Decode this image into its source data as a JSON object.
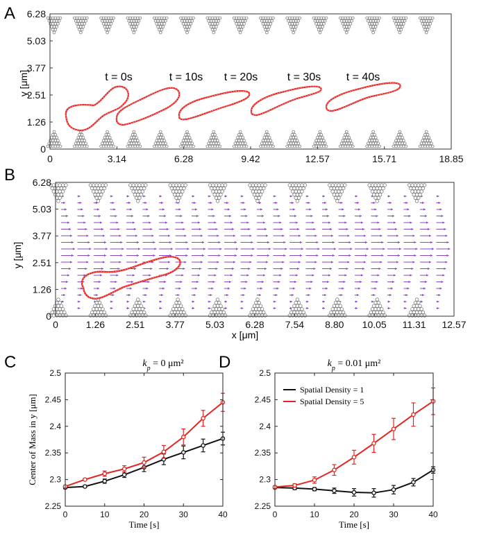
{
  "panels": {
    "A": {
      "label": "A",
      "ylabel": "y [μm]",
      "xticks": [
        "0",
        "3.14",
        "6.28",
        "9.42",
        "12.57",
        "15.71",
        "18.85"
      ],
      "yticks": [
        "0",
        "1.26",
        "2.51",
        "3.77",
        "5.03",
        "6.28"
      ],
      "time_labels": [
        "t = 0s",
        "t = 10s",
        "t = 20s",
        "t = 30s",
        "t = 40s"
      ],
      "cell_color": "#e52420",
      "post_color": "#888888"
    },
    "B": {
      "label": "B",
      "xlabel": "x [μm]",
      "ylabel": "y [μm]",
      "xticks": [
        "0",
        "1.26",
        "2.51",
        "3.77",
        "5.03",
        "6.28",
        "7.54",
        "8.80",
        "10.05",
        "11.31",
        "12.57"
      ],
      "yticks": [
        "0",
        "1.26",
        "2.51",
        "3.77",
        "5.03",
        "6.28"
      ],
      "arrow_color": "#8a44c4",
      "cell_color": "#e52420"
    },
    "C": {
      "label": "C",
      "title_prefix": "k",
      "title_sub": "p",
      "title_rest": " = 0 μm²"
    },
    "D": {
      "label": "D",
      "title_prefix": "k",
      "title_sub": "p",
      "title_rest": " = 0.01 μm²"
    }
  },
  "chart_data": [
    {
      "panel": "C",
      "type": "line",
      "title": "k_p = 0 μm²",
      "xlabel": "Time [s]",
      "ylabel": "Center of Mass in y [μm]",
      "xlim": [
        0,
        40
      ],
      "ylim": [
        2.25,
        2.5
      ],
      "xticks": [
        0,
        10,
        20,
        30,
        40
      ],
      "yticks": [
        2.25,
        2.3,
        2.35,
        2.4,
        2.45,
        2.5
      ],
      "x": [
        0,
        5,
        10,
        15,
        20,
        25,
        30,
        35,
        40
      ],
      "series": [
        {
          "name": "Spatial Density = 1",
          "color": "#111111",
          "values": [
            2.285,
            2.287,
            2.297,
            2.309,
            2.323,
            2.338,
            2.351,
            2.364,
            2.377
          ],
          "errors": [
            0.002,
            0.002,
            0.004,
            0.005,
            0.008,
            0.01,
            0.012,
            0.012,
            0.012
          ]
        },
        {
          "name": "Spatial Density = 5",
          "color": "#e52420",
          "values": [
            2.287,
            2.3,
            2.311,
            2.32,
            2.332,
            2.352,
            2.38,
            2.415,
            2.445
          ],
          "errors": [
            0.002,
            0.002,
            0.005,
            0.006,
            0.01,
            0.012,
            0.015,
            0.015,
            0.017
          ]
        }
      ]
    },
    {
      "panel": "D",
      "type": "line",
      "title": "k_p = 0.01 μm²",
      "xlabel": "Time [s]",
      "ylabel": "",
      "legend": "top-left",
      "xlim": [
        0,
        40
      ],
      "ylim": [
        2.25,
        2.5
      ],
      "xticks": [
        0,
        10,
        20,
        30,
        40
      ],
      "yticks": [
        2.25,
        2.3,
        2.35,
        2.4,
        2.45,
        2.5
      ],
      "x": [
        0,
        5,
        10,
        15,
        20,
        25,
        30,
        35,
        40
      ],
      "series": [
        {
          "name": "Spatial Density = 1",
          "color": "#111111",
          "values": [
            2.285,
            2.284,
            2.282,
            2.279,
            2.276,
            2.275,
            2.281,
            2.295,
            2.318
          ],
          "errors": [
            0.002,
            0.003,
            0.003,
            0.005,
            0.007,
            0.008,
            0.008,
            0.007,
            0.006
          ]
        },
        {
          "name": "Spatial Density = 5",
          "color": "#e52420",
          "values": [
            2.286,
            2.289,
            2.299,
            2.318,
            2.342,
            2.368,
            2.395,
            2.422,
            2.447
          ],
          "errors": [
            0.002,
            0.003,
            0.006,
            0.01,
            0.013,
            0.017,
            0.02,
            0.022,
            0.025
          ]
        }
      ]
    }
  ]
}
